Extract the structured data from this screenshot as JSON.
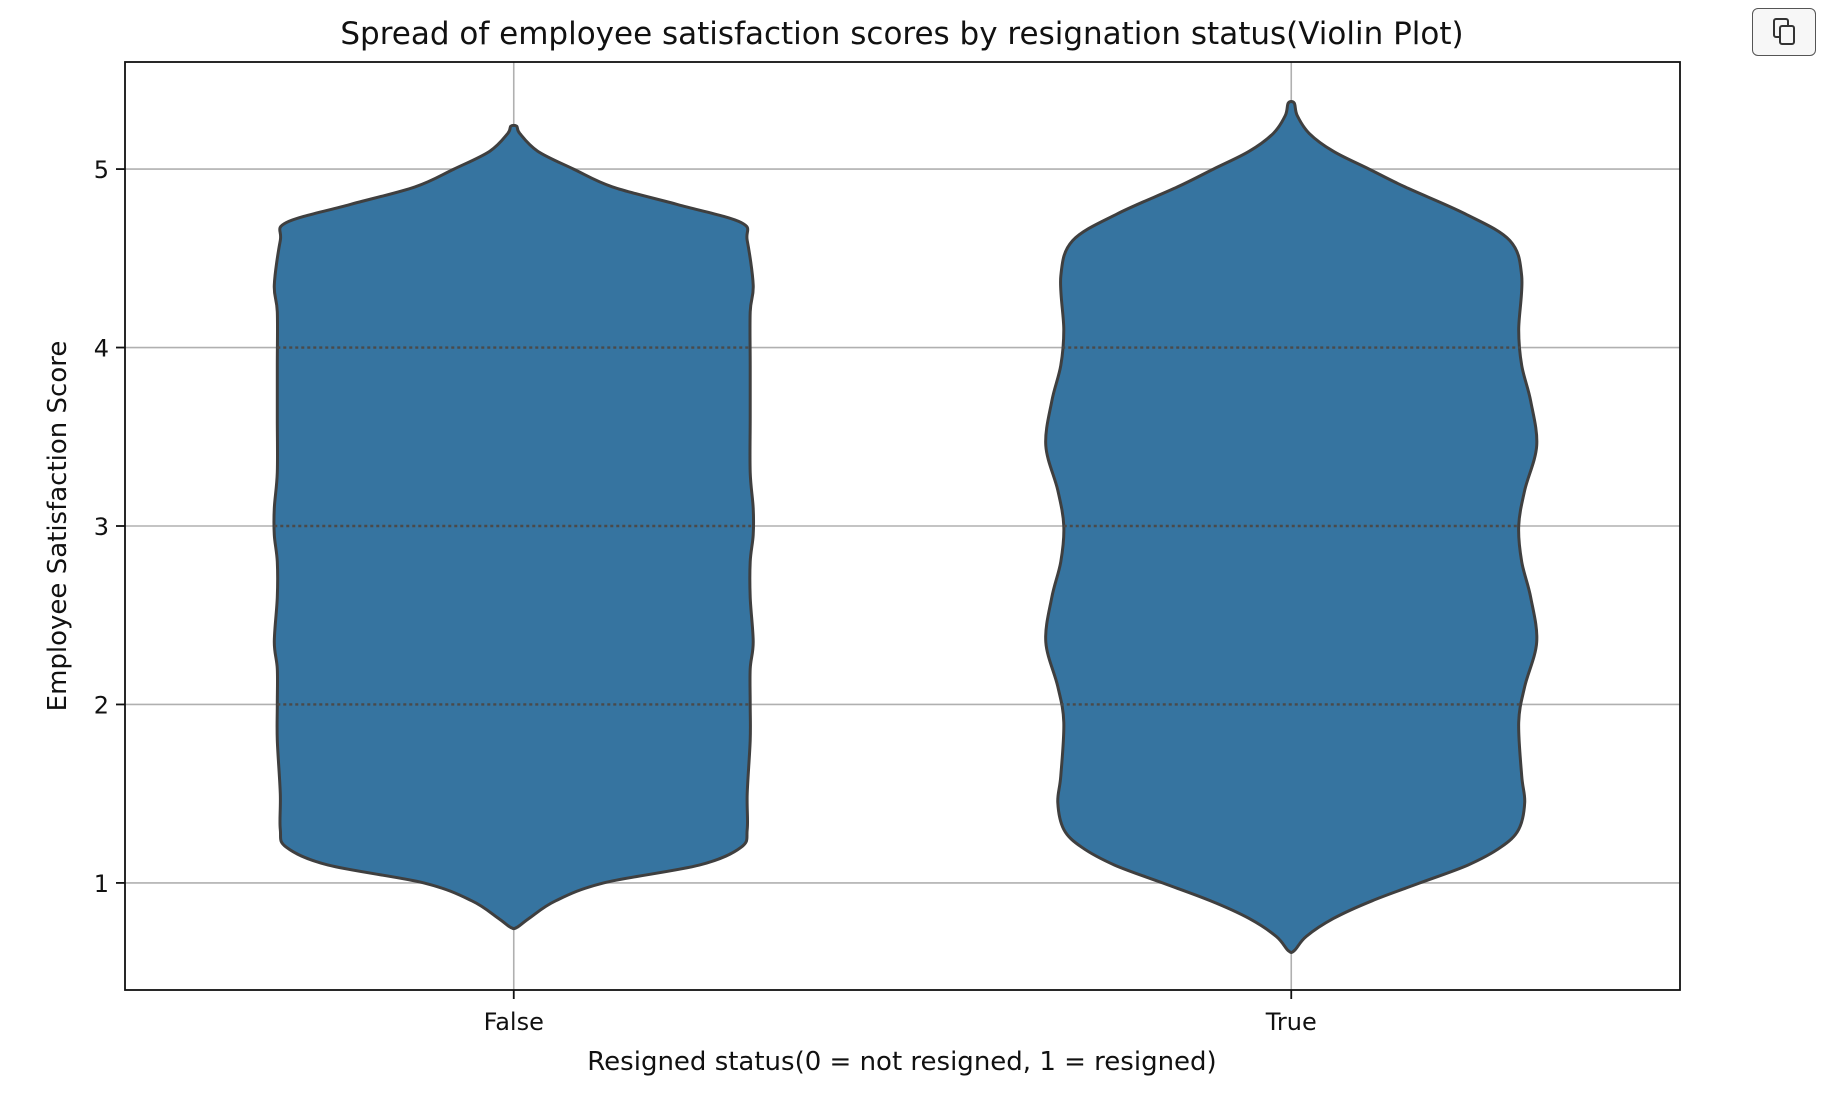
{
  "toolbar": {
    "copy_icon": "copy-icon"
  },
  "chart_data": {
    "type": "violin",
    "title": "Spread of employee satisfaction scores by resignation status(Violin Plot)",
    "xlabel": "Resigned status(0 = not resigned, 1 = resigned)",
    "ylabel": "Employee Satisfaction Score",
    "categories": [
      "False",
      "True"
    ],
    "ylim": [
      0.4,
      5.6
    ],
    "yticks": [
      1,
      2,
      3,
      4,
      5
    ],
    "grid": true,
    "colors": {
      "fill": "#3674a0",
      "edge": "#3f3f3f",
      "grid": "#b0b0b0"
    },
    "violins": [
      {
        "category": "False",
        "range": [
          0.75,
          5.24
        ],
        "quartiles": [
          2.0,
          3.0,
          4.0
        ],
        "density": [
          [
            0.75,
            0.01
          ],
          [
            0.8,
            0.05
          ],
          [
            0.9,
            0.14
          ],
          [
            1.0,
            0.3
          ],
          [
            1.1,
            0.62
          ],
          [
            1.2,
            0.76
          ],
          [
            1.3,
            0.78
          ],
          [
            1.5,
            0.78
          ],
          [
            1.8,
            0.79
          ],
          [
            2.0,
            0.79
          ],
          [
            2.2,
            0.79
          ],
          [
            2.35,
            0.8
          ],
          [
            2.6,
            0.79
          ],
          [
            2.8,
            0.79
          ],
          [
            2.95,
            0.8
          ],
          [
            3.1,
            0.8
          ],
          [
            3.3,
            0.79
          ],
          [
            3.6,
            0.79
          ],
          [
            3.9,
            0.79
          ],
          [
            4.2,
            0.79
          ],
          [
            4.35,
            0.8
          ],
          [
            4.6,
            0.78
          ],
          [
            4.7,
            0.76
          ],
          [
            4.8,
            0.55
          ],
          [
            4.9,
            0.33
          ],
          [
            5.0,
            0.2
          ],
          [
            5.1,
            0.08
          ],
          [
            5.2,
            0.02
          ],
          [
            5.24,
            0.01
          ]
        ]
      },
      {
        "category": "True",
        "range": [
          0.62,
          5.37
        ],
        "quartiles": [
          2.0,
          3.0,
          4.0
        ],
        "density": [
          [
            0.62,
            0.01
          ],
          [
            0.7,
            0.05
          ],
          [
            0.8,
            0.14
          ],
          [
            0.9,
            0.27
          ],
          [
            1.0,
            0.43
          ],
          [
            1.1,
            0.59
          ],
          [
            1.2,
            0.7
          ],
          [
            1.3,
            0.76
          ],
          [
            1.45,
            0.78
          ],
          [
            1.6,
            0.77
          ],
          [
            1.9,
            0.76
          ],
          [
            2.1,
            0.78
          ],
          [
            2.35,
            0.82
          ],
          [
            2.6,
            0.8
          ],
          [
            2.8,
            0.77
          ],
          [
            3.0,
            0.76
          ],
          [
            3.2,
            0.78
          ],
          [
            3.45,
            0.82
          ],
          [
            3.7,
            0.8
          ],
          [
            3.9,
            0.77
          ],
          [
            4.1,
            0.76
          ],
          [
            4.4,
            0.77
          ],
          [
            4.6,
            0.73
          ],
          [
            4.75,
            0.58
          ],
          [
            4.9,
            0.38
          ],
          [
            5.0,
            0.26
          ],
          [
            5.1,
            0.14
          ],
          [
            5.2,
            0.06
          ],
          [
            5.3,
            0.02
          ],
          [
            5.37,
            0.01
          ]
        ]
      }
    ]
  }
}
